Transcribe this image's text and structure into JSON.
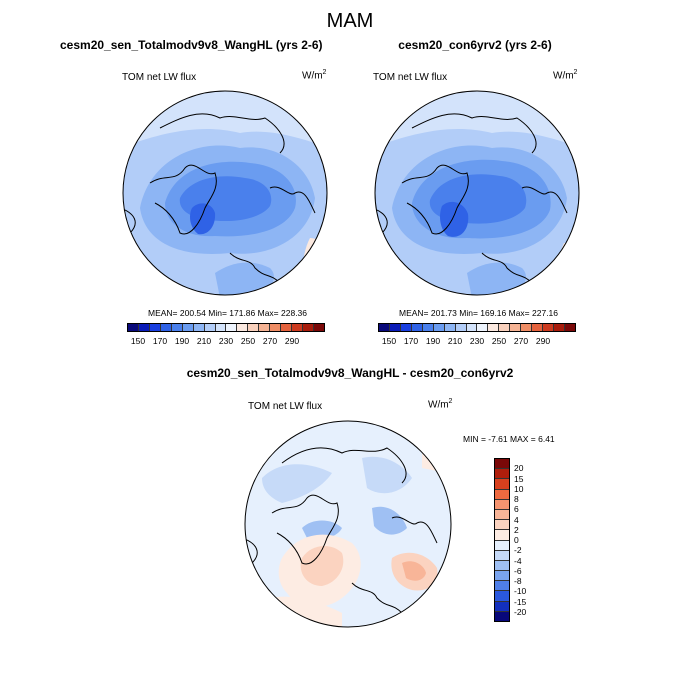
{
  "main_title": "MAM",
  "panels": [
    {
      "title": "cesm20_sen_Totalmodv9v8_WangHL (yrs 2-6)",
      "var_label": "TOM net LW flux",
      "units_base": "W/m",
      "units_exp": "2",
      "stats": "MEAN= 200.54  Min= 171.86  Max= 228.36",
      "mean": 200.54,
      "min": 171.86,
      "max": 228.36
    },
    {
      "title": "cesm20_con6yrv2 (yrs 2-6)",
      "var_label": "TOM net LW flux",
      "units_base": "W/m",
      "units_exp": "2",
      "stats": "MEAN= 201.73  Min= 169.16  Max= 227.16",
      "mean": 201.73,
      "min": 169.16,
      "max": 227.16
    }
  ],
  "diff_panel": {
    "title": "cesm20_sen_Totalmodv9v8_WangHL - cesm20_con6yrv2",
    "var_label": "TOM net LW flux",
    "units_base": "W/m",
    "units_exp": "2",
    "minmax": "MIN =  -7.61 MAX =   6.41",
    "min": -7.61,
    "max": 6.41
  },
  "colorbar_abs": {
    "labels": [
      "150",
      "170",
      "190",
      "210",
      "230",
      "250",
      "270",
      "290"
    ],
    "colors": [
      "#0a0a7a",
      "#0b1cb8",
      "#1a3fe0",
      "#2f62e6",
      "#4a80ec",
      "#6a9cf0",
      "#8db5f4",
      "#b2cdf8",
      "#d3e3fb",
      "#eef4fd",
      "#fbe9e0",
      "#f9d1bd",
      "#f5b394",
      "#ef8d65",
      "#e4623d",
      "#cc3a1f",
      "#a81c0c",
      "#7a0808"
    ]
  },
  "colorbar_diff": {
    "labels": [
      "20",
      "15",
      "10",
      "8",
      "6",
      "4",
      "2",
      "0",
      "-2",
      "-4",
      "-6",
      "-8",
      "-10",
      "-15",
      "-20"
    ],
    "colors": [
      "#7a0808",
      "#b01e0c",
      "#d8401e",
      "#ee6a40",
      "#f59470",
      "#f8b598",
      "#fbd3c0",
      "#fdece3",
      "#e6f0fd",
      "#c6daf8",
      "#9fc0f3",
      "#7aa4ee",
      "#4f7fe8",
      "#2a58de",
      "#1330bd",
      "#08087a"
    ]
  },
  "chart_data": [
    {
      "type": "heatmap",
      "projection": "north polar stereographic",
      "title": "cesm20_sen_Totalmodv9v8_WangHL (yrs 2-6)",
      "variable": "TOM net LW flux",
      "units": "W/m2",
      "contour_levels": [
        150,
        160,
        170,
        180,
        190,
        200,
        210,
        220,
        230,
        240,
        250,
        260,
        270,
        280,
        290
      ],
      "mean": 200.54,
      "min": 171.86,
      "max": 228.36
    },
    {
      "type": "heatmap",
      "projection": "north polar stereographic",
      "title": "cesm20_con6yrv2 (yrs 2-6)",
      "variable": "TOM net LW flux",
      "units": "W/m2",
      "contour_levels": [
        150,
        160,
        170,
        180,
        190,
        200,
        210,
        220,
        230,
        240,
        250,
        260,
        270,
        280,
        290
      ],
      "mean": 201.73,
      "min": 169.16,
      "max": 227.16
    },
    {
      "type": "heatmap",
      "projection": "north polar stereographic",
      "title": "cesm20_sen_Totalmodv9v8_WangHL - cesm20_con6yrv2",
      "variable": "TOM net LW flux",
      "units": "W/m2",
      "contour_levels": [
        -20,
        -15,
        -10,
        -8,
        -6,
        -4,
        -2,
        0,
        2,
        4,
        6,
        8,
        10,
        15,
        20
      ],
      "min": -7.61,
      "max": 6.41
    }
  ]
}
